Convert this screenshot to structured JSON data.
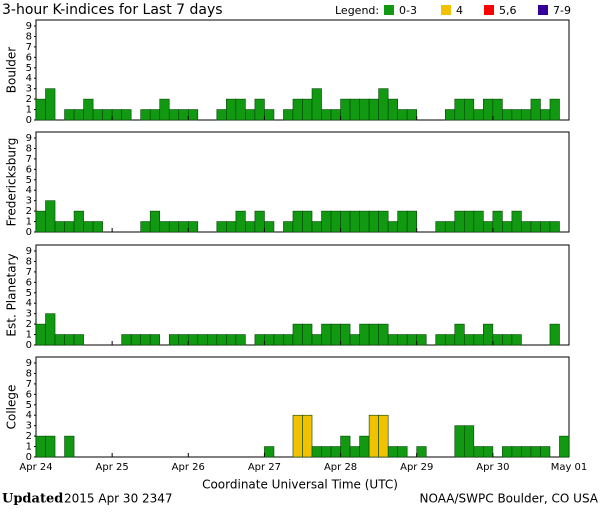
{
  "title": "3-hour K-indices for Last 7 days",
  "legend": {
    "title": "Legend:",
    "items": [
      {
        "label": "0-3",
        "color": "#119911"
      },
      {
        "label": "4",
        "color": "#f2c200"
      },
      {
        "label": "5,6",
        "color": "#ff0000"
      },
      {
        "label": "7-9",
        "color": "#330099"
      }
    ]
  },
  "x_axis": {
    "title": "Coordinate Universal Time (UTC)",
    "labels": [
      "Apr 24",
      "Apr 25",
      "Apr 26",
      "Apr 27",
      "Apr 28",
      "Apr 29",
      "Apr 30",
      "May 01"
    ]
  },
  "chart_data": [
    {
      "type": "bar",
      "ylabel": "Boulder",
      "ylim": [
        0,
        9
      ],
      "yticks": [
        0,
        1,
        2,
        3,
        4,
        5,
        6,
        7,
        8,
        9
      ],
      "values": [
        2,
        3,
        0,
        1,
        1,
        2,
        1,
        1,
        1,
        1,
        0,
        1,
        1,
        2,
        1,
        1,
        1,
        0,
        0,
        1,
        2,
        2,
        1,
        2,
        1,
        0,
        1,
        2,
        2,
        3,
        1,
        1,
        2,
        2,
        2,
        2,
        3,
        2,
        1,
        1,
        0,
        0,
        0,
        1,
        2,
        2,
        1,
        2,
        2,
        1,
        1,
        1,
        2,
        1,
        2,
        0
      ]
    },
    {
      "type": "bar",
      "ylabel": "Fredericksburg",
      "ylim": [
        0,
        9
      ],
      "yticks": [
        0,
        1,
        2,
        3,
        4,
        5,
        6,
        7,
        8,
        9
      ],
      "values": [
        2,
        3,
        1,
        1,
        2,
        1,
        1,
        0,
        0,
        0,
        0,
        1,
        2,
        1,
        1,
        1,
        1,
        0,
        0,
        1,
        1,
        2,
        1,
        2,
        1,
        0,
        1,
        2,
        2,
        1,
        2,
        2,
        2,
        2,
        2,
        2,
        2,
        1,
        2,
        2,
        0,
        0,
        1,
        1,
        2,
        2,
        2,
        1,
        2,
        1,
        2,
        1,
        1,
        1,
        1,
        0
      ]
    },
    {
      "type": "bar",
      "ylabel": "Est. Planetary",
      "ylim": [
        0,
        9
      ],
      "yticks": [
        0,
        1,
        2,
        3,
        4,
        5,
        6,
        7,
        8,
        9
      ],
      "values": [
        2,
        3,
        1,
        1,
        1,
        0,
        0,
        0,
        0,
        1,
        1,
        1,
        1,
        0,
        1,
        1,
        1,
        1,
        1,
        1,
        1,
        1,
        0,
        1,
        1,
        1,
        1,
        2,
        2,
        1,
        2,
        2,
        2,
        1,
        2,
        2,
        2,
        1,
        1,
        1,
        1,
        0,
        1,
        1,
        2,
        1,
        1,
        2,
        1,
        1,
        1,
        0,
        0,
        0,
        2,
        0
      ]
    },
    {
      "type": "bar",
      "ylabel": "College",
      "ylim": [
        0,
        9
      ],
      "yticks": [
        0,
        1,
        2,
        3,
        4,
        5,
        6,
        7,
        8,
        9
      ],
      "values": [
        2,
        2,
        0,
        2,
        0,
        0,
        0,
        0,
        0,
        0,
        0,
        0,
        0,
        0,
        0,
        0,
        0,
        0,
        0,
        0,
        0,
        0,
        0,
        0,
        1,
        0,
        0,
        4,
        4,
        1,
        1,
        1,
        2,
        1,
        2,
        4,
        4,
        1,
        1,
        0,
        1,
        0,
        0,
        0,
        3,
        3,
        1,
        1,
        0,
        1,
        1,
        1,
        1,
        1,
        0,
        2
      ]
    }
  ],
  "footer": {
    "updated_label": "Updated",
    "updated": "2015 Apr 30 2347",
    "credit": "NOAA/SWPC Boulder, CO USA"
  }
}
